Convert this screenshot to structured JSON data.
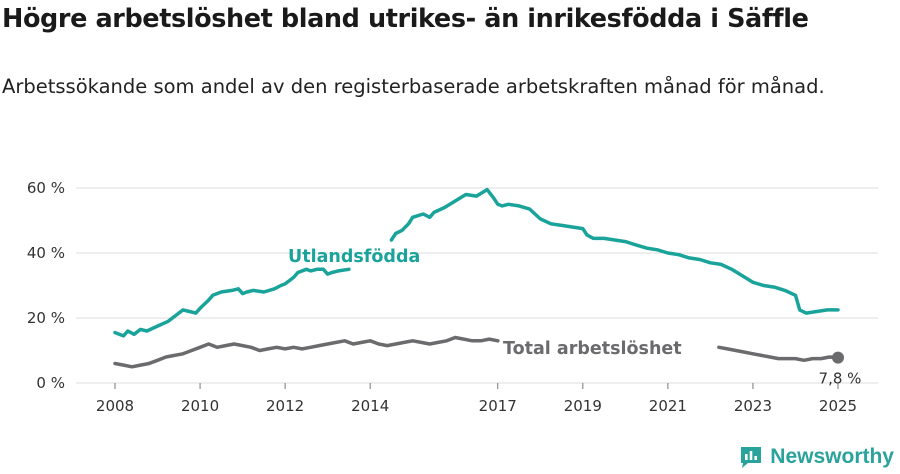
{
  "title": "Högre arbetslöshet bland utrikes- än inrikesfödda i Säffle",
  "subtitle": "Arbetssökande som andel av den registerbaserade arbetskraften månad för månad.",
  "brand": {
    "name": "Newsworthy",
    "icon": "newsworthy-logo-icon",
    "color": "#2aa39c"
  },
  "chart_data": {
    "type": "line",
    "ylim": [
      0,
      60
    ],
    "yticks": [
      "0 %",
      "20 %",
      "40 %",
      "60 %"
    ],
    "ytick_values": [
      0,
      20,
      40,
      60
    ],
    "xlim": [
      2007.7,
      2025.5
    ],
    "xticks": [
      "2008",
      "2010",
      "2012",
      "2014",
      "2017",
      "2019",
      "2021",
      "2023",
      "2025"
    ],
    "xtick_values": [
      2008,
      2010,
      2012,
      2014,
      2017,
      2019,
      2021,
      2023,
      2025
    ],
    "grid": true,
    "series": [
      {
        "name": "Utlandsfödda",
        "color": "#1aa39a",
        "x": [
          2008,
          2008.1,
          2008.2,
          2008.3,
          2008.45,
          2008.6,
          2008.75,
          2009,
          2009.25,
          2009.5,
          2009.6,
          2009.75,
          2009.9,
          2010,
          2010.2,
          2010.3,
          2010.5,
          2010.75,
          2010.9,
          2011,
          2011.1,
          2011.25,
          2011.5,
          2011.75,
          2011.9,
          2012,
          2012.1,
          2012.2,
          2012.3,
          2012.5,
          2012.6,
          2012.75,
          2012.9,
          2013,
          2013.1,
          2013.25,
          2013.5,
          null,
          2014.5,
          2014.6,
          2014.75,
          2014.9,
          2015,
          2015.25,
          2015.4,
          2015.5,
          2015.75,
          2016,
          2016.25,
          2016.5,
          2016.75,
          2016.9,
          2017,
          2017.1,
          2017.25,
          2017.5,
          2017.75,
          2018,
          2018.25,
          2018.5,
          2018.75,
          2019,
          2019.1,
          2019.25,
          2019.5,
          2019.75,
          2020,
          2020.25,
          2020.5,
          2020.75,
          2021,
          2021.25,
          2021.5,
          2021.75,
          2022,
          2022.25,
          2022.5,
          2022.75,
          2023,
          2023.25,
          2023.5,
          2023.75,
          2024,
          2024.1,
          2024.25,
          2024.5,
          2024.75,
          2025
        ],
        "values": [
          15.5,
          15.0,
          14.5,
          16.0,
          15.0,
          16.5,
          16.0,
          17.5,
          19.0,
          21.5,
          22.5,
          22.0,
          21.5,
          23.0,
          25.5,
          27.0,
          28.0,
          28.5,
          29.0,
          27.5,
          28.0,
          28.5,
          28.0,
          29.0,
          30.0,
          30.5,
          31.5,
          32.5,
          34.0,
          35.0,
          34.5,
          35.0,
          35.0,
          33.5,
          34.0,
          34.5,
          35.0,
          null,
          44.0,
          46.0,
          47.0,
          49.0,
          51.0,
          52.0,
          51.0,
          52.5,
          54.0,
          56.0,
          58.0,
          57.5,
          59.5,
          57.0,
          55.0,
          54.5,
          55.0,
          54.5,
          53.5,
          50.5,
          49.0,
          48.5,
          48.0,
          47.5,
          45.5,
          44.5,
          44.5,
          44.0,
          43.5,
          42.5,
          41.5,
          41.0,
          40.0,
          39.5,
          38.5,
          38.0,
          37.0,
          36.5,
          35.0,
          33.0,
          31.0,
          30.0,
          29.5,
          28.5,
          27.0,
          22.5,
          21.5,
          22.0,
          22.5,
          22.5
        ]
      },
      {
        "name": "Total arbetslöshet",
        "color": "#6b6b6e",
        "x": [
          2008,
          2008.2,
          2008.4,
          2008.6,
          2008.8,
          2009,
          2009.2,
          2009.4,
          2009.6,
          2009.8,
          2010,
          2010.2,
          2010.4,
          2010.6,
          2010.8,
          2011,
          2011.2,
          2011.4,
          2011.6,
          2011.8,
          2012,
          2012.2,
          2012.4,
          2012.6,
          2012.8,
          2013,
          2013.2,
          2013.4,
          2013.6,
          2013.8,
          2014,
          2014.2,
          2014.4,
          2014.6,
          2014.8,
          2015,
          2015.2,
          2015.4,
          2015.6,
          2015.8,
          2016,
          2016.2,
          2016.4,
          2016.6,
          2016.8,
          2017,
          null,
          2022.2,
          2022.4,
          2022.6,
          2022.8,
          2023,
          2023.2,
          2023.4,
          2023.6,
          2023.8,
          2024,
          2024.2,
          2024.4,
          2024.6,
          2024.8,
          2025
        ],
        "values": [
          6.0,
          5.5,
          5.0,
          5.5,
          6.0,
          7.0,
          8.0,
          8.5,
          9.0,
          10.0,
          11.0,
          12.0,
          11.0,
          11.5,
          12.0,
          11.5,
          11.0,
          10.0,
          10.5,
          11.0,
          10.5,
          11.0,
          10.5,
          11.0,
          11.5,
          12.0,
          12.5,
          13.0,
          12.0,
          12.5,
          13.0,
          12.0,
          11.5,
          12.0,
          12.5,
          13.0,
          12.5,
          12.0,
          12.5,
          13.0,
          14.0,
          13.5,
          13.0,
          13.0,
          13.5,
          13.0,
          null,
          11.0,
          10.5,
          10.0,
          9.5,
          9.0,
          8.5,
          8.0,
          7.5,
          7.5,
          7.5,
          7.0,
          7.5,
          7.5,
          8.0,
          7.8
        ]
      }
    ],
    "annotations": {
      "series_label_1": "Utlandsfödda",
      "series_label_2": "Total arbetslöshet",
      "end_value": "7,8 %"
    }
  }
}
